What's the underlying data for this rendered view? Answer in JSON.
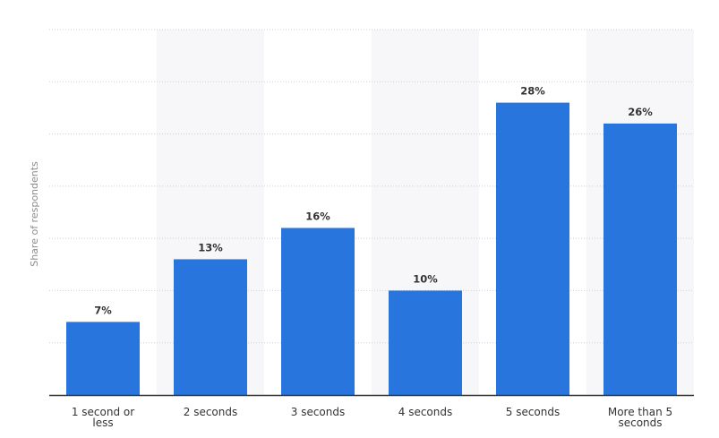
{
  "chart_data": {
    "type": "bar",
    "categories": [
      "1 second or less",
      "2 seconds",
      "3 seconds",
      "4 seconds",
      "5 seconds",
      "More than 5 seconds"
    ],
    "values": [
      7,
      13,
      16,
      10,
      28,
      26
    ],
    "data_labels": [
      "7%",
      "13%",
      "16%",
      "10%",
      "28%",
      "26%"
    ],
    "title": "",
    "xlabel": "",
    "ylabel": "Share of respondents",
    "ylim": [
      0,
      35
    ],
    "grid": true,
    "legend": "none",
    "bar_color": "#2876dd",
    "band_color": "#f7f7f9",
    "gridline_color": "#cfcfcf",
    "axis_color": "#333333"
  }
}
